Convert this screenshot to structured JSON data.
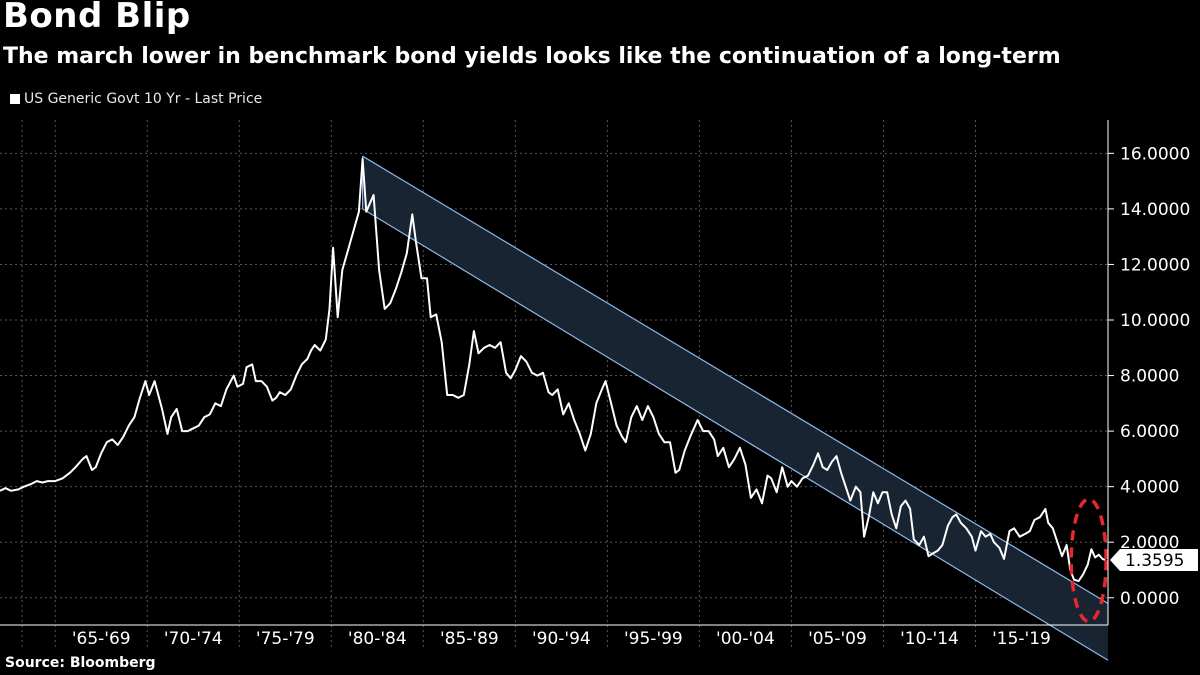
{
  "title": "Bond Blip",
  "subtitle": "The march lower in benchmark bond yields looks like the continuation of a long-term",
  "source": "Source: Bloomberg",
  "chart_data": {
    "type": "line",
    "title": "Bond Blip",
    "legend": [
      {
        "label": "US Generic Govt 10 Yr - Last Price",
        "color": "#ffffff"
      }
    ],
    "legend_position": "top-left",
    "y_axis_position": "right",
    "ylim": [
      -0.8,
      17.2
    ],
    "yticks": [
      0,
      2,
      4,
      6,
      8,
      10,
      12,
      14,
      16
    ],
    "ytick_labels": [
      "0.0000",
      "2.0000",
      "4.0000",
      "6.0000",
      "8.0000",
      "10.0000",
      "12.0000",
      "14.0000",
      "16.0000"
    ],
    "xlim": [
      1962.0,
      2022.2
    ],
    "x_categories": [
      "'65-'69",
      "'70-'74",
      "'75-'79",
      "'80-'84",
      "'85-'89",
      "'90-'94",
      "'95-'99",
      "'00-'04",
      "'05-'09",
      "'10-'14",
      "'15-'19"
    ],
    "x_category_starts": [
      1965,
      1970,
      1975,
      1980,
      1985,
      1990,
      1995,
      2000,
      2005,
      2010,
      2015
    ],
    "last_value": 1.3595,
    "last_value_label": "1.3595",
    "grid": true,
    "series": [
      {
        "name": "US Generic Govt 10 Yr - Last Price",
        "color": "#ffffff",
        "points": [
          [
            1962.0,
            3.85
          ],
          [
            1962.3,
            3.95
          ],
          [
            1962.6,
            3.85
          ],
          [
            1963.0,
            3.9
          ],
          [
            1963.3,
            4.0
          ],
          [
            1963.7,
            4.1
          ],
          [
            1964.0,
            4.2
          ],
          [
            1964.3,
            4.15
          ],
          [
            1964.6,
            4.2
          ],
          [
            1965.0,
            4.2
          ],
          [
            1965.4,
            4.3
          ],
          [
            1965.8,
            4.5
          ],
          [
            1966.1,
            4.7
          ],
          [
            1966.5,
            5.0
          ],
          [
            1966.7,
            5.1
          ],
          [
            1967.0,
            4.6
          ],
          [
            1967.2,
            4.7
          ],
          [
            1967.5,
            5.2
          ],
          [
            1967.8,
            5.6
          ],
          [
            1968.1,
            5.7
          ],
          [
            1968.4,
            5.5
          ],
          [
            1968.7,
            5.8
          ],
          [
            1969.0,
            6.2
          ],
          [
            1969.3,
            6.5
          ],
          [
            1969.6,
            7.2
          ],
          [
            1969.9,
            7.8
          ],
          [
            1970.1,
            7.3
          ],
          [
            1970.4,
            7.8
          ],
          [
            1970.8,
            6.8
          ],
          [
            1971.1,
            5.9
          ],
          [
            1971.3,
            6.5
          ],
          [
            1971.6,
            6.8
          ],
          [
            1971.9,
            6.0
          ],
          [
            1972.2,
            6.0
          ],
          [
            1972.5,
            6.1
          ],
          [
            1972.8,
            6.2
          ],
          [
            1973.1,
            6.5
          ],
          [
            1973.4,
            6.6
          ],
          [
            1973.7,
            7.0
          ],
          [
            1974.0,
            6.9
          ],
          [
            1974.3,
            7.5
          ],
          [
            1974.7,
            8.0
          ],
          [
            1974.9,
            7.6
          ],
          [
            1975.2,
            7.7
          ],
          [
            1975.4,
            8.3
          ],
          [
            1975.7,
            8.4
          ],
          [
            1975.9,
            7.8
          ],
          [
            1976.2,
            7.8
          ],
          [
            1976.5,
            7.6
          ],
          [
            1976.8,
            7.1
          ],
          [
            1977.0,
            7.2
          ],
          [
            1977.2,
            7.4
          ],
          [
            1977.5,
            7.3
          ],
          [
            1977.8,
            7.5
          ],
          [
            1978.1,
            8.0
          ],
          [
            1978.4,
            8.4
          ],
          [
            1978.7,
            8.6
          ],
          [
            1978.9,
            8.9
          ],
          [
            1979.1,
            9.1
          ],
          [
            1979.4,
            8.9
          ],
          [
            1979.7,
            9.3
          ],
          [
            1979.9,
            10.4
          ],
          [
            1980.1,
            12.6
          ],
          [
            1980.35,
            10.1
          ],
          [
            1980.6,
            11.8
          ],
          [
            1980.9,
            12.5
          ],
          [
            1981.2,
            13.2
          ],
          [
            1981.5,
            13.9
          ],
          [
            1981.7,
            15.8
          ],
          [
            1981.9,
            13.9
          ],
          [
            1982.1,
            14.2
          ],
          [
            1982.3,
            14.5
          ],
          [
            1982.6,
            11.8
          ],
          [
            1982.9,
            10.4
          ],
          [
            1983.2,
            10.6
          ],
          [
            1983.5,
            11.1
          ],
          [
            1983.8,
            11.7
          ],
          [
            1984.1,
            12.4
          ],
          [
            1984.4,
            13.8
          ],
          [
            1984.6,
            12.8
          ],
          [
            1984.9,
            11.5
          ],
          [
            1985.2,
            11.5
          ],
          [
            1985.4,
            10.1
          ],
          [
            1985.7,
            10.2
          ],
          [
            1986.0,
            9.2
          ],
          [
            1986.3,
            7.3
          ],
          [
            1986.6,
            7.3
          ],
          [
            1986.9,
            7.2
          ],
          [
            1987.2,
            7.3
          ],
          [
            1987.5,
            8.4
          ],
          [
            1987.75,
            9.6
          ],
          [
            1988.0,
            8.8
          ],
          [
            1988.3,
            9.0
          ],
          [
            1988.6,
            9.1
          ],
          [
            1988.9,
            9.0
          ],
          [
            1989.2,
            9.2
          ],
          [
            1989.5,
            8.1
          ],
          [
            1989.75,
            7.9
          ],
          [
            1990.0,
            8.2
          ],
          [
            1990.3,
            8.7
          ],
          [
            1990.6,
            8.5
          ],
          [
            1990.9,
            8.1
          ],
          [
            1991.2,
            8.0
          ],
          [
            1991.5,
            8.1
          ],
          [
            1991.8,
            7.4
          ],
          [
            1992.0,
            7.3
          ],
          [
            1992.3,
            7.5
          ],
          [
            1992.6,
            6.6
          ],
          [
            1992.9,
            7.0
          ],
          [
            1993.2,
            6.4
          ],
          [
            1993.5,
            5.9
          ],
          [
            1993.8,
            5.3
          ],
          [
            1994.1,
            5.9
          ],
          [
            1994.4,
            7.0
          ],
          [
            1994.7,
            7.5
          ],
          [
            1994.9,
            7.8
          ],
          [
            1995.2,
            7.0
          ],
          [
            1995.5,
            6.2
          ],
          [
            1995.8,
            5.8
          ],
          [
            1996.0,
            5.6
          ],
          [
            1996.3,
            6.5
          ],
          [
            1996.6,
            6.9
          ],
          [
            1996.9,
            6.4
          ],
          [
            1997.2,
            6.9
          ],
          [
            1997.5,
            6.5
          ],
          [
            1997.8,
            5.9
          ],
          [
            1998.1,
            5.6
          ],
          [
            1998.4,
            5.6
          ],
          [
            1998.7,
            4.5
          ],
          [
            1998.9,
            4.6
          ],
          [
            1999.2,
            5.3
          ],
          [
            1999.5,
            5.8
          ],
          [
            1999.9,
            6.4
          ],
          [
            2000.2,
            6.0
          ],
          [
            2000.5,
            6.0
          ],
          [
            2000.8,
            5.7
          ],
          [
            2001.0,
            5.1
          ],
          [
            2001.3,
            5.4
          ],
          [
            2001.6,
            4.7
          ],
          [
            2001.9,
            5.0
          ],
          [
            2002.2,
            5.4
          ],
          [
            2002.5,
            4.8
          ],
          [
            2002.8,
            3.6
          ],
          [
            2003.1,
            3.9
          ],
          [
            2003.4,
            3.4
          ],
          [
            2003.7,
            4.4
          ],
          [
            2003.9,
            4.3
          ],
          [
            2004.2,
            3.8
          ],
          [
            2004.5,
            4.7
          ],
          [
            2004.8,
            4.0
          ],
          [
            2005.0,
            4.2
          ],
          [
            2005.3,
            4.0
          ],
          [
            2005.6,
            4.3
          ],
          [
            2005.9,
            4.4
          ],
          [
            2006.2,
            4.8
          ],
          [
            2006.45,
            5.2
          ],
          [
            2006.7,
            4.7
          ],
          [
            2006.95,
            4.6
          ],
          [
            2007.2,
            4.9
          ],
          [
            2007.45,
            5.1
          ],
          [
            2007.7,
            4.5
          ],
          [
            2007.95,
            4.0
          ],
          [
            2008.2,
            3.5
          ],
          [
            2008.5,
            4.0
          ],
          [
            2008.75,
            3.8
          ],
          [
            2008.95,
            2.2
          ],
          [
            2009.2,
            2.9
          ],
          [
            2009.45,
            3.8
          ],
          [
            2009.7,
            3.4
          ],
          [
            2009.95,
            3.8
          ],
          [
            2010.2,
            3.8
          ],
          [
            2010.45,
            3.0
          ],
          [
            2010.7,
            2.5
          ],
          [
            2010.95,
            3.3
          ],
          [
            2011.2,
            3.5
          ],
          [
            2011.45,
            3.2
          ],
          [
            2011.65,
            2.1
          ],
          [
            2011.95,
            1.9
          ],
          [
            2012.2,
            2.2
          ],
          [
            2012.45,
            1.5
          ],
          [
            2012.7,
            1.6
          ],
          [
            2012.95,
            1.7
          ],
          [
            2013.2,
            1.9
          ],
          [
            2013.5,
            2.6
          ],
          [
            2013.75,
            2.9
          ],
          [
            2013.95,
            3.0
          ],
          [
            2014.2,
            2.7
          ],
          [
            2014.5,
            2.5
          ],
          [
            2014.8,
            2.2
          ],
          [
            2015.0,
            1.7
          ],
          [
            2015.3,
            2.4
          ],
          [
            2015.55,
            2.2
          ],
          [
            2015.8,
            2.3
          ],
          [
            2016.0,
            2.0
          ],
          [
            2016.3,
            1.8
          ],
          [
            2016.55,
            1.4
          ],
          [
            2016.85,
            2.4
          ],
          [
            2017.1,
            2.5
          ],
          [
            2017.4,
            2.2
          ],
          [
            2017.7,
            2.3
          ],
          [
            2017.95,
            2.4
          ],
          [
            2018.2,
            2.8
          ],
          [
            2018.5,
            2.9
          ],
          [
            2018.8,
            3.2
          ],
          [
            2018.95,
            2.7
          ],
          [
            2019.2,
            2.5
          ],
          [
            2019.45,
            2.0
          ],
          [
            2019.7,
            1.5
          ],
          [
            2019.95,
            1.9
          ],
          [
            2020.15,
            1.0
          ],
          [
            2020.35,
            0.65
          ],
          [
            2020.6,
            0.6
          ],
          [
            2020.85,
            0.85
          ],
          [
            2021.1,
            1.2
          ],
          [
            2021.3,
            1.75
          ],
          [
            2021.5,
            1.45
          ],
          [
            2021.7,
            1.55
          ],
          [
            2021.9,
            1.4
          ],
          [
            2022.05,
            1.36
          ]
        ]
      }
    ],
    "annotations": [
      {
        "type": "channel",
        "description": "downward trend channel",
        "x": [
          1981.7,
          2022.2
        ],
        "upper": [
          15.9,
          -0.2
        ],
        "lower": [
          14.0,
          -2.25
        ],
        "fill": "#1a2635",
        "stroke": "#8fb8e8"
      },
      {
        "type": "ellipse",
        "description": "red dashed circle highlighting recent blip",
        "cx": 2021.15,
        "cy": 1.35,
        "rx_years": 0.95,
        "ry_value": 2.2,
        "color": "#e8272e"
      }
    ]
  }
}
